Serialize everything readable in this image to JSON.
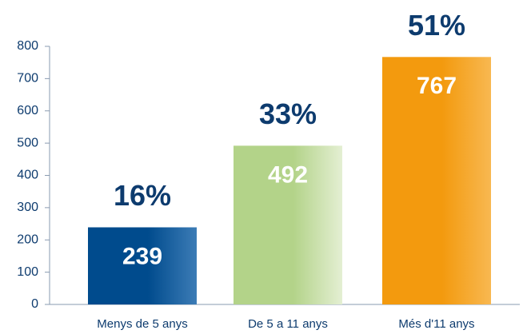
{
  "chart_data": {
    "type": "bar",
    "categories": [
      "Menys de 5 anys",
      "De 5 a 11 anys",
      "Més d'11 anys"
    ],
    "values": [
      239,
      492,
      767
    ],
    "annotations": [
      "16%",
      "33%",
      "51%"
    ],
    "colors": [
      [
        "#004b8d",
        "#3c7cb6"
      ],
      [
        "#b3d389",
        "#e4efd3"
      ],
      [
        "#f39a0e",
        "#f8b851"
      ]
    ],
    "ylim": [
      0,
      800
    ],
    "yticks": [
      0,
      100,
      200,
      300,
      400,
      500,
      600,
      700,
      800
    ]
  }
}
